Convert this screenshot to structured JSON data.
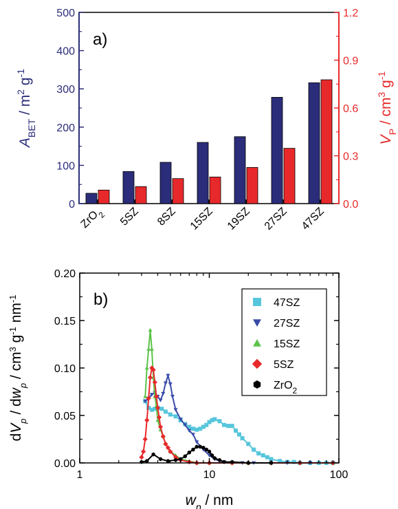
{
  "chart_data": [
    {
      "type": "bar",
      "panel_label": "a)",
      "categories": [
        "ZrO2",
        "5SZ",
        "8SZ",
        "15SZ",
        "19SZ",
        "27SZ",
        "47SZ"
      ],
      "category_labels": [
        {
          "main": "ZrO",
          "sub": "2"
        },
        {
          "main": "5SZ",
          "sub": ""
        },
        {
          "main": "8SZ",
          "sub": ""
        },
        {
          "main": "15SZ",
          "sub": ""
        },
        {
          "main": "19SZ",
          "sub": ""
        },
        {
          "main": "27SZ",
          "sub": ""
        },
        {
          "main": "47SZ",
          "sub": ""
        }
      ],
      "series": [
        {
          "axis": "left",
          "color": "#2b2d7a",
          "values": [
            27,
            84,
            108,
            160,
            175,
            278,
            316
          ]
        },
        {
          "axis": "right",
          "color": "#e8292b",
          "values": [
            0.085,
            0.107,
            0.157,
            0.167,
            0.227,
            0.347,
            0.777
          ]
        }
      ],
      "ylabel_left": {
        "main": "A",
        "sub": "BET",
        "rest": " / m",
        "sup1": "2",
        "rest2": " g",
        "sup2": "-1"
      },
      "ylabel_right": {
        "main": "V",
        "sub": "P",
        "rest": " / cm",
        "sup1": "3",
        "rest2": " g",
        "sup2": "-1"
      },
      "ylim_left": [
        0,
        500
      ],
      "ylim_right": [
        0,
        1.2
      ],
      "yticks_left": [
        "0",
        "100",
        "200",
        "300",
        "400",
        "500"
      ],
      "yticks_right": [
        "0.0",
        "0.3",
        "0.6",
        "0.9",
        "1.2"
      ],
      "colors": {
        "left_axis": "#2b2d7a",
        "right_axis": "#e8292b"
      }
    },
    {
      "type": "line",
      "panel_label": "b)",
      "x_scale": "log",
      "xlim": [
        1,
        100
      ],
      "ylim": [
        0,
        0.2
      ],
      "xticks": [
        "1",
        "10",
        "100"
      ],
      "yticks": [
        "0.00",
        "0.05",
        "0.10",
        "0.15",
        "0.20"
      ],
      "xlabel": {
        "main": "w",
        "sub": "p",
        "rest": " / nm"
      },
      "ylabel": {
        "pre": "d",
        "v": "V",
        "vsub": "p",
        "mid": " / d",
        "w": "w",
        "wsub": "p",
        "rest": " / cm",
        "sup1": "3",
        "rest2": " g",
        "sup2": "-1",
        "rest3": " nm",
        "sup3": "-1"
      },
      "legend_position": "top-right",
      "series": [
        {
          "name": "47SZ",
          "color": "#56c6dc",
          "marker": "square",
          "x": [
            3.2,
            3.4,
            3.6,
            3.8,
            4.0,
            4.3,
            4.6,
            5.0,
            5.5,
            6.0,
            6.5,
            7.0,
            7.5,
            8.0,
            8.5,
            9.0,
            9.5,
            10.0,
            10.5,
            11.0,
            12.0,
            13.0,
            14.0,
            15.0,
            16.0,
            17.0,
            18.0,
            20.0,
            22.0,
            24.0,
            26.0,
            28.0,
            30.0,
            35.0,
            40.0,
            45.0,
            50.0,
            60.0,
            70.0,
            80.0,
            90.0
          ],
          "y": [
            0.065,
            0.058,
            0.056,
            0.057,
            0.058,
            0.057,
            0.054,
            0.051,
            0.049,
            0.045,
            0.041,
            0.038,
            0.036,
            0.035,
            0.036,
            0.038,
            0.04,
            0.043,
            0.045,
            0.046,
            0.044,
            0.04,
            0.039,
            0.039,
            0.034,
            0.03,
            0.026,
            0.02,
            0.014,
            0.01,
            0.008,
            0.006,
            0.004,
            0.002,
            0.001,
            0.001,
            0.0,
            0.0,
            0.0,
            0.0,
            0.0
          ]
        },
        {
          "name": "27SZ",
          "color": "#3a4aa8",
          "marker": "triangle-down",
          "x": [
            3.2,
            3.4,
            3.6,
            3.8,
            4.0,
            4.2,
            4.4,
            4.6,
            4.8,
            5.0,
            5.2,
            5.5,
            6.0,
            6.5,
            7.0,
            7.5,
            8.0,
            9.0,
            10.0,
            11.0,
            12.0,
            13.0,
            15.0,
            18.0,
            22.0,
            30.0,
            40.0,
            60.0,
            90.0
          ],
          "y": [
            0.065,
            0.068,
            0.072,
            0.074,
            0.07,
            0.066,
            0.073,
            0.084,
            0.092,
            0.083,
            0.07,
            0.056,
            0.046,
            0.04,
            0.034,
            0.03,
            0.022,
            0.014,
            0.008,
            0.004,
            0.002,
            0.001,
            0.0,
            0.0,
            0.0,
            0.0,
            0.0,
            0.0,
            0.0
          ]
        },
        {
          "name": "15SZ",
          "color": "#5cc34a",
          "marker": "triangle-up",
          "x": [
            3.2,
            3.3,
            3.4,
            3.5,
            3.6,
            3.7,
            3.8,
            3.9,
            4.0,
            4.2,
            4.4,
            4.6,
            5.0,
            5.5,
            6.0,
            7.0,
            8.0,
            10.0,
            15.0,
            20.0,
            30.0,
            50.0,
            90.0
          ],
          "y": [
            0.07,
            0.1,
            0.12,
            0.14,
            0.12,
            0.09,
            0.07,
            0.06,
            0.045,
            0.035,
            0.028,
            0.02,
            0.012,
            0.008,
            0.004,
            0.002,
            0.0,
            0.0,
            0.0,
            0.0,
            0.0,
            0.0,
            0.0
          ]
        },
        {
          "name": "5SZ",
          "color": "#e8292b",
          "marker": "diamond",
          "x": [
            3.0,
            3.1,
            3.2,
            3.3,
            3.4,
            3.5,
            3.6,
            3.7,
            3.8,
            3.9,
            4.0,
            4.1,
            4.2,
            4.4,
            4.6,
            4.8,
            5.0,
            5.5,
            6.0,
            7.0,
            8.0,
            10.0,
            15.0,
            20.0,
            30.0,
            50.0,
            90.0
          ],
          "y": [
            0.006,
            0.012,
            0.025,
            0.045,
            0.068,
            0.09,
            0.1,
            0.098,
            0.085,
            0.07,
            0.058,
            0.048,
            0.038,
            0.028,
            0.02,
            0.016,
            0.012,
            0.006,
            0.003,
            0.001,
            0.0,
            0.0,
            0.0,
            0.0,
            0.0,
            0.0,
            0.0
          ]
        },
        {
          "name": "ZrO2",
          "label_main": "ZrO",
          "label_sub": "2",
          "color": "#000000",
          "marker": "hexagon",
          "x": [
            3.0,
            3.3,
            3.7,
            4.2,
            4.8,
            5.5,
            6.0,
            6.5,
            7.0,
            7.5,
            8.0,
            8.5,
            9.0,
            9.5,
            10.0,
            10.5,
            11.0,
            12.0,
            13.0,
            15.0,
            20.0,
            30.0
          ],
          "y": [
            0.001,
            0.002,
            0.009,
            0.004,
            0.002,
            0.003,
            0.004,
            0.007,
            0.011,
            0.014,
            0.017,
            0.017,
            0.016,
            0.014,
            0.012,
            0.008,
            0.005,
            0.003,
            0.001,
            0.001,
            0.0,
            0.0
          ]
        }
      ]
    }
  ]
}
